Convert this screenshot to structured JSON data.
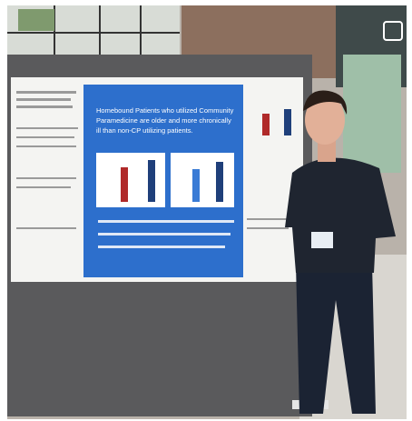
{
  "poster": {
    "headline": "Homebound Patients who utilized Community Paramedicine are older and more chronically ill than non-CP utilizing patients."
  }
}
